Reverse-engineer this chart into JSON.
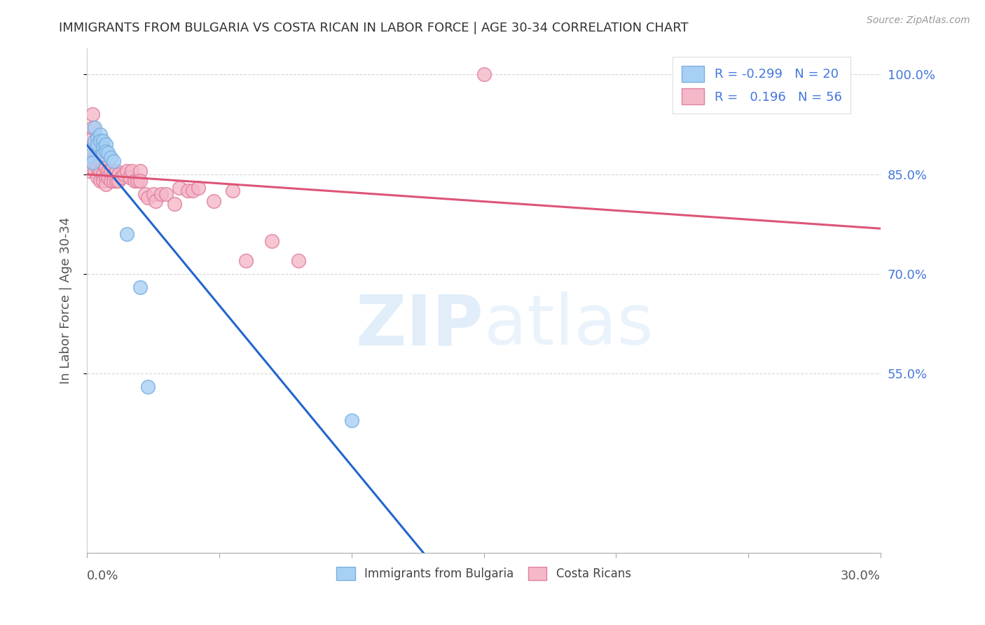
{
  "title": "IMMIGRANTS FROM BULGARIA VS COSTA RICAN IN LABOR FORCE | AGE 30-34 CORRELATION CHART",
  "source": "Source: ZipAtlas.com",
  "ylabel": "In Labor Force | Age 30-34",
  "xlim": [
    0.0,
    0.3
  ],
  "ylim": [
    0.28,
    1.04
  ],
  "bulgaria_color": "#a8d0f5",
  "bulgaria_edge": "#7ab0e0",
  "costarica_color": "#f5b8c8",
  "costarica_edge": "#e080a0",
  "bulgaria_R": -0.299,
  "bulgaria_N": 20,
  "costarica_R": 0.196,
  "costarica_N": 56,
  "bulgaria_points": [
    [
      0.001,
      0.878
    ],
    [
      0.002,
      0.868
    ],
    [
      0.003,
      0.9
    ],
    [
      0.003,
      0.92
    ],
    [
      0.004,
      0.905
    ],
    [
      0.004,
      0.895
    ],
    [
      0.005,
      0.91
    ],
    [
      0.005,
      0.9
    ],
    [
      0.006,
      0.9
    ],
    [
      0.006,
      0.89
    ],
    [
      0.006,
      0.88
    ],
    [
      0.007,
      0.895
    ],
    [
      0.007,
      0.885
    ],
    [
      0.008,
      0.882
    ],
    [
      0.009,
      0.875
    ],
    [
      0.01,
      0.87
    ],
    [
      0.015,
      0.76
    ],
    [
      0.02,
      0.68
    ],
    [
      0.023,
      0.53
    ],
    [
      0.1,
      0.48
    ]
  ],
  "costarica_points": [
    [
      0.001,
      0.87
    ],
    [
      0.001,
      0.855
    ],
    [
      0.002,
      0.905
    ],
    [
      0.002,
      0.94
    ],
    [
      0.002,
      0.92
    ],
    [
      0.003,
      0.88
    ],
    [
      0.003,
      0.87
    ],
    [
      0.003,
      0.855
    ],
    [
      0.004,
      0.88
    ],
    [
      0.004,
      0.86
    ],
    [
      0.004,
      0.845
    ],
    [
      0.005,
      0.87
    ],
    [
      0.005,
      0.855
    ],
    [
      0.005,
      0.84
    ],
    [
      0.006,
      0.865
    ],
    [
      0.006,
      0.85
    ],
    [
      0.006,
      0.84
    ],
    [
      0.007,
      0.86
    ],
    [
      0.007,
      0.845
    ],
    [
      0.007,
      0.835
    ],
    [
      0.008,
      0.855
    ],
    [
      0.008,
      0.845
    ],
    [
      0.009,
      0.855
    ],
    [
      0.009,
      0.84
    ],
    [
      0.01,
      0.85
    ],
    [
      0.01,
      0.84
    ],
    [
      0.011,
      0.855
    ],
    [
      0.011,
      0.84
    ],
    [
      0.012,
      0.85
    ],
    [
      0.012,
      0.84
    ],
    [
      0.013,
      0.845
    ],
    [
      0.014,
      0.85
    ],
    [
      0.015,
      0.855
    ],
    [
      0.016,
      0.845
    ],
    [
      0.017,
      0.855
    ],
    [
      0.018,
      0.84
    ],
    [
      0.019,
      0.84
    ],
    [
      0.02,
      0.855
    ],
    [
      0.02,
      0.84
    ],
    [
      0.022,
      0.82
    ],
    [
      0.023,
      0.815
    ],
    [
      0.025,
      0.82
    ],
    [
      0.026,
      0.81
    ],
    [
      0.028,
      0.82
    ],
    [
      0.03,
      0.82
    ],
    [
      0.033,
      0.805
    ],
    [
      0.035,
      0.83
    ],
    [
      0.038,
      0.825
    ],
    [
      0.04,
      0.825
    ],
    [
      0.042,
      0.83
    ],
    [
      0.048,
      0.81
    ],
    [
      0.055,
      0.825
    ],
    [
      0.06,
      0.72
    ],
    [
      0.07,
      0.75
    ],
    [
      0.08,
      0.72
    ],
    [
      0.15,
      1.0
    ]
  ],
  "watermark_zip": "ZIP",
  "watermark_atlas": "atlas",
  "bg_color": "#ffffff",
  "grid_color": "#cccccc",
  "title_color": "#333333",
  "axis_label_color": "#555555",
  "right_tick_color": "#4477dd",
  "bottom_tick_color": "#555555",
  "y_tick_vals": [
    1.0,
    0.85,
    0.7,
    0.55
  ],
  "y_tick_labels": [
    "100.0%",
    "85.0%",
    "70.0%",
    "55.0%"
  ],
  "x_tick_vals": [
    0.0,
    0.05,
    0.1,
    0.15,
    0.2,
    0.25,
    0.3
  ],
  "blue_line_color": "#2266cc",
  "pink_line_color": "#dd5577",
  "dashed_line_color": "#99bbdd"
}
